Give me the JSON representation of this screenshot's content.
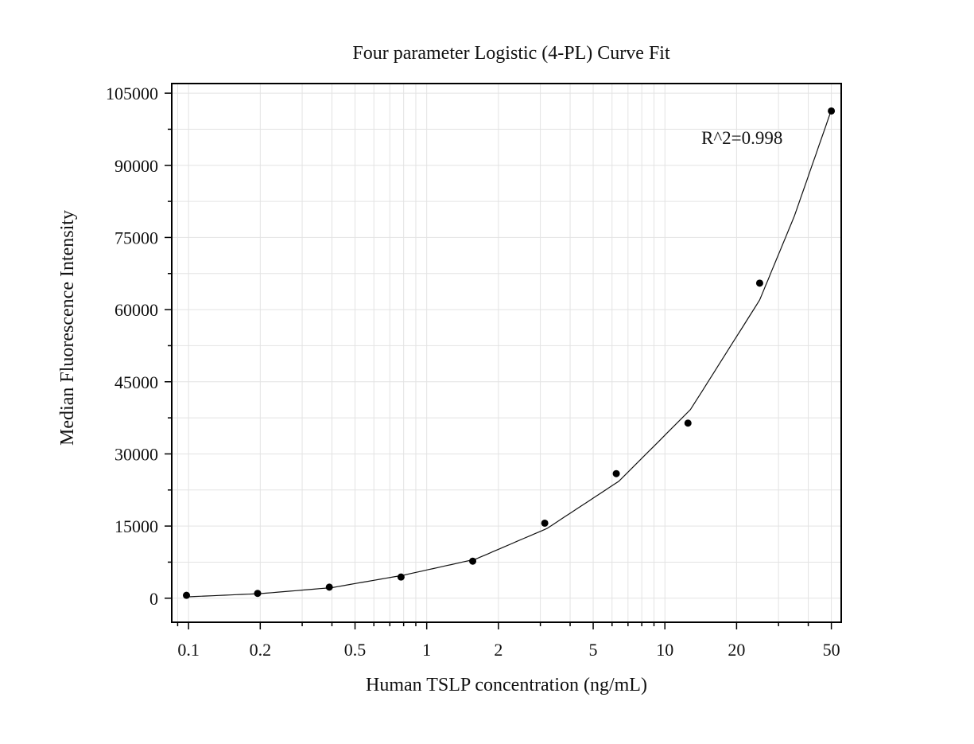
{
  "chart_data": {
    "type": "scatter",
    "title": "Four parameter Logistic (4-PL) Curve Fit",
    "xlabel": "Human TSLP concentration (ng/mL)",
    "ylabel": "Median Fluorescence Intensity",
    "x_scale": "log10",
    "xlim": [
      0.085,
      55
    ],
    "ylim": [
      -5000,
      107000
    ],
    "x_ticks": [
      0.1,
      0.2,
      0.5,
      1,
      2,
      5,
      10,
      20,
      50
    ],
    "x_tick_labels": [
      "0.1",
      "0.2",
      "0.5",
      "1",
      "2",
      "5",
      "10",
      "20",
      "50"
    ],
    "y_ticks": [
      0,
      15000,
      30000,
      45000,
      60000,
      75000,
      90000,
      105000
    ],
    "y_tick_labels": [
      "0",
      "15000",
      "30000",
      "45000",
      "60000",
      "75000",
      "90000",
      "105000"
    ],
    "grid": true,
    "series": [
      {
        "x": [
          0.098,
          0.195,
          0.39,
          0.78,
          1.56,
          3.13,
          6.25,
          12.5,
          25,
          50
        ],
        "y": [
          600,
          1000,
          2300,
          4400,
          7700,
          15600,
          25900,
          36400,
          65500,
          101300
        ]
      }
    ],
    "fit_curve": {
      "model": "4-PL",
      "x": [
        0.1,
        0.2,
        0.4,
        0.8,
        1.6,
        3.2,
        6.4,
        12.8,
        25,
        35,
        50
      ],
      "y": [
        300,
        950,
        2200,
        4800,
        8100,
        14500,
        24300,
        39200,
        62000,
        79500,
        101500
      ]
    },
    "annotations": [
      {
        "text": "R^2=0.998",
        "x": 14.5,
        "y": 95800
      }
    ]
  }
}
